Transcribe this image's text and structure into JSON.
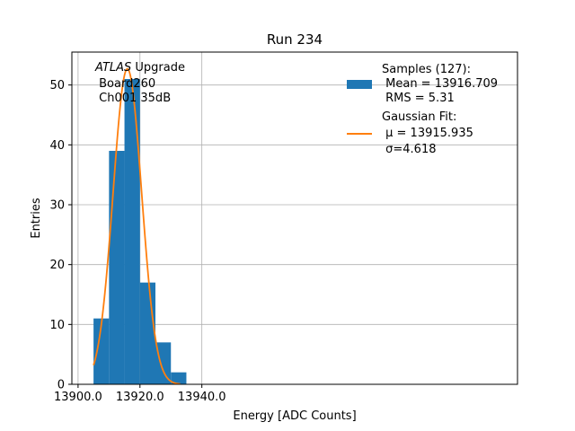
{
  "chart_data": {
    "type": "bar",
    "title": "Run 234",
    "xlabel": "Energy [ADC Counts]",
    "ylabel": "Entries",
    "xlim": [
      13898,
      14042
    ],
    "ylim": [
      0,
      55.5
    ],
    "x_ticks": [
      13900,
      13920,
      13940
    ],
    "x_tick_labels": [
      "13900.0",
      "13920.0",
      "13940.0"
    ],
    "y_ticks": [
      0,
      10,
      20,
      30,
      40,
      50
    ],
    "y_tick_labels": [
      "0",
      "10",
      "20",
      "30",
      "40",
      "50"
    ],
    "grid": true,
    "histogram": {
      "name": "Samples (127):",
      "color": "#1f77b4",
      "bin_edges": [
        13905,
        13910,
        13915,
        13920,
        13925,
        13930,
        13935
      ],
      "counts": [
        11,
        39,
        51,
        17,
        7,
        2
      ]
    },
    "fit": {
      "name": "Gaussian Fit:",
      "color": "#ff7f0e",
      "mu": 13915.935,
      "sigma": 4.618,
      "amplitude": 52.7,
      "x_range": [
        13905,
        13933
      ]
    },
    "annotation": [
      "ATLAS Upgrade",
      " Board260",
      " Ch001 35dB"
    ],
    "annotation_italic_word": "ATLAS",
    "legend": {
      "placement": "top-right",
      "samples_lines": [
        "Samples (127):",
        " Mean = 13916.709",
        " RMS = 5.31"
      ],
      "fit_lines": [
        "Gaussian Fit:",
        " μ = 13915.935",
        " σ=4.618"
      ]
    }
  }
}
